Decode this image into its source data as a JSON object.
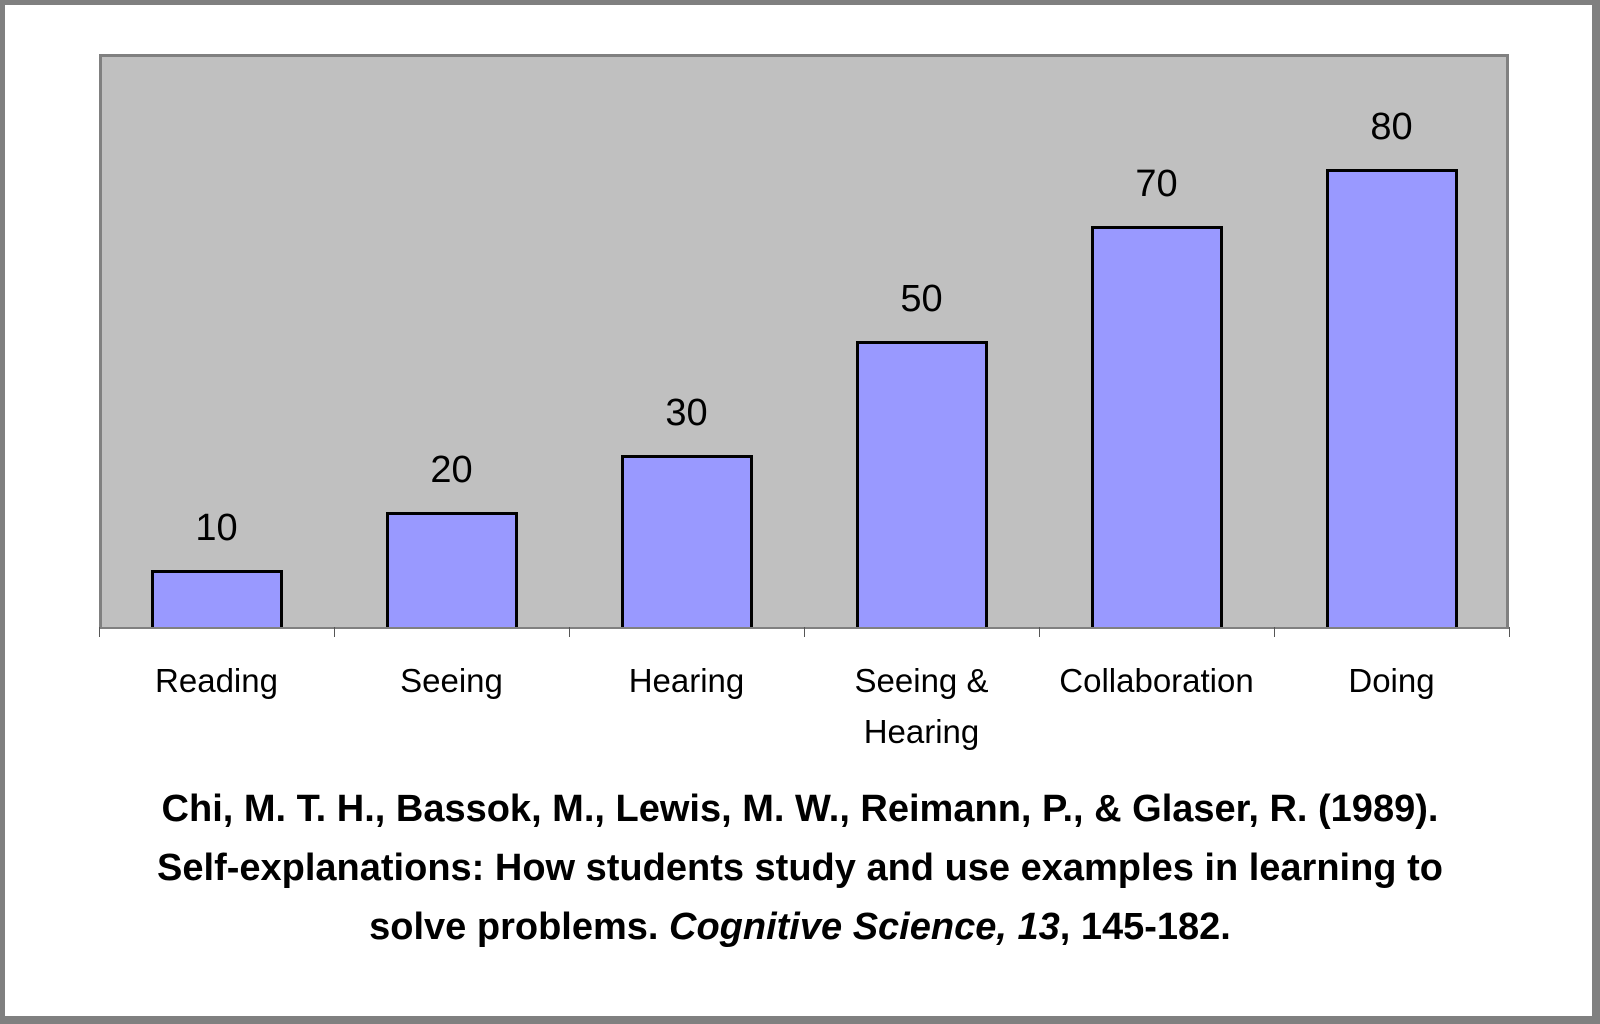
{
  "chart_data": {
    "type": "bar",
    "title": "",
    "xlabel": "",
    "ylabel": "",
    "categories": [
      "Reading",
      "Seeing",
      "Hearing",
      "Seeing & Hearing",
      "Collaboration",
      "Doing"
    ],
    "category_lines": [
      [
        "Reading"
      ],
      [
        "Seeing"
      ],
      [
        "Hearing"
      ],
      [
        "Seeing &",
        "Hearing"
      ],
      [
        "Collaboration"
      ],
      [
        "Doing"
      ]
    ],
    "values": [
      10,
      20,
      30,
      50,
      70,
      80
    ],
    "data_labels": [
      "10",
      "20",
      "30",
      "50",
      "70",
      "80"
    ],
    "ylim": [
      0,
      90
    ],
    "grid": false,
    "legend": null,
    "colors": {
      "bar_fill": "#9999ff",
      "bar_edge": "#000000",
      "plot_bg": "#c0c0c0",
      "frame": "#808080"
    }
  },
  "citation": {
    "line1": "Chi, M. T. H., Bassok, M., Lewis, M. W., Reimann, P., & Glaser, R. (1989).",
    "line2": "Self-explanations: How students study and use examples in learning to",
    "line3_pre": "solve problems. ",
    "line3_journal": "Cognitive Science, 13",
    "line3_post": ", 145-182."
  }
}
